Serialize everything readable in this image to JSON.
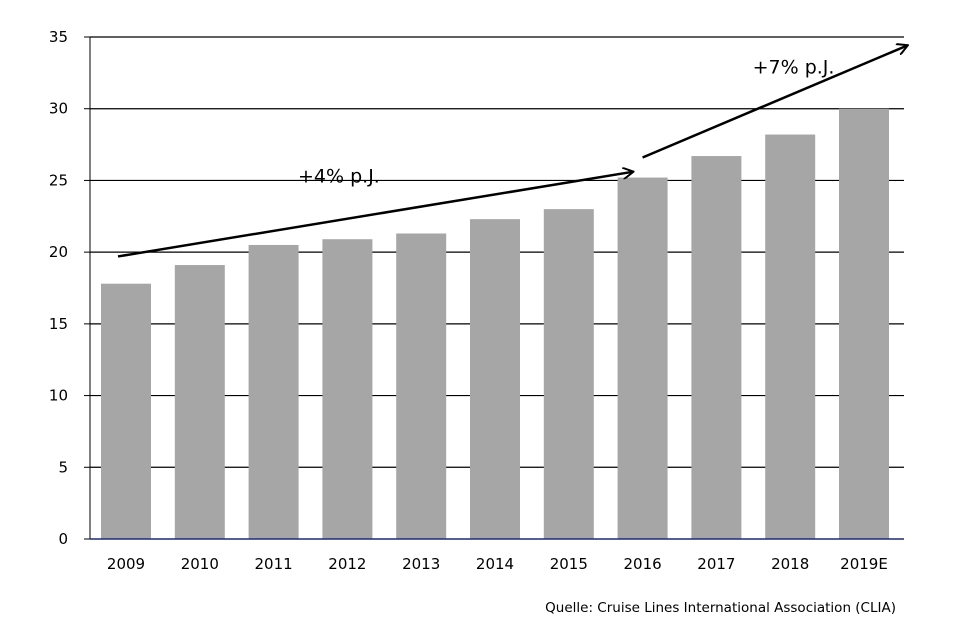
{
  "chart_data": {
    "type": "bar",
    "categories": [
      "2009",
      "2010",
      "2011",
      "2012",
      "2013",
      "2014",
      "2015",
      "2016",
      "2017",
      "2018",
      "2019E"
    ],
    "values": [
      17.8,
      19.1,
      20.5,
      20.9,
      21.3,
      22.3,
      23.0,
      25.2,
      26.7,
      28.2,
      30.0
    ],
    "ylim": [
      0,
      35
    ],
    "yticks": [
      "0",
      "5",
      "10",
      "15",
      "20",
      "25",
      "30",
      "35"
    ],
    "grid": true,
    "bar_color": "#a6a6a6",
    "annotations": [
      {
        "text": "+4% p.J.",
        "from": [
          "2009",
          19.7
        ],
        "to": [
          "2016",
          25.6
        ]
      },
      {
        "text": "+7% p.J.",
        "from": [
          "2016",
          26.6
        ],
        "to": [
          "2019E",
          34.4
        ]
      }
    ],
    "source": "Quelle: Cruise Lines International Association (CLIA)"
  }
}
